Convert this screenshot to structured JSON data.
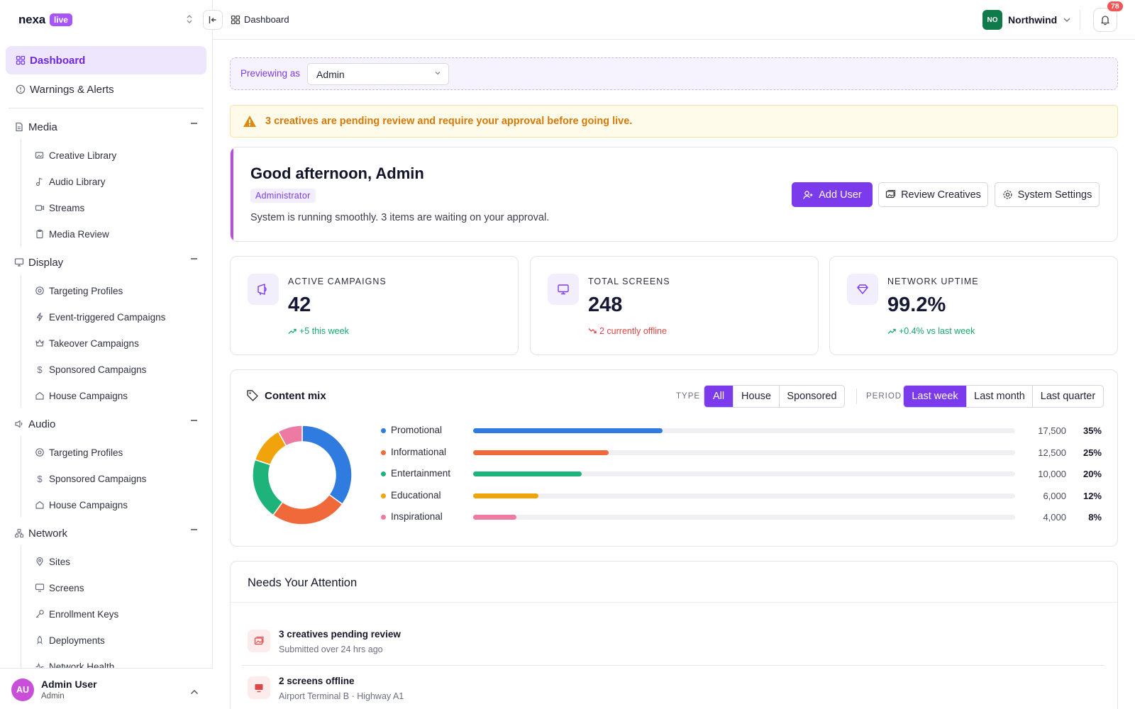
{
  "brand": {
    "name": "nexa",
    "badge": "live"
  },
  "sidebar": {
    "top_items": [
      {
        "label": "Dashboard",
        "icon": "grid-icon",
        "active": true
      },
      {
        "label": "Warnings & Alerts",
        "icon": "alert-circle-icon",
        "active": false
      }
    ],
    "groups": [
      {
        "label": "Media",
        "icon": "document-icon",
        "items": [
          "Creative Library",
          "Audio Library",
          "Streams",
          "Media Review"
        ]
      },
      {
        "label": "Display",
        "icon": "monitor-icon",
        "items": [
          "Targeting Profiles",
          "Event-triggered Campaigns",
          "Takeover Campaigns",
          "Sponsored Campaigns",
          "House Campaigns"
        ]
      },
      {
        "label": "Audio",
        "icon": "speaker-icon",
        "items": [
          "Targeting Profiles",
          "Sponsored Campaigns",
          "House Campaigns"
        ]
      },
      {
        "label": "Network",
        "icon": "network-icon",
        "items": [
          "Sites",
          "Screens",
          "Enrollment Keys",
          "Deployments",
          "Network Health"
        ]
      }
    ],
    "user": {
      "initials": "AU",
      "name": "Admin User",
      "role": "Admin"
    }
  },
  "topbar": {
    "breadcrumb": "Dashboard",
    "org": {
      "initials": "NO",
      "name": "Northwind"
    },
    "notifications": "78"
  },
  "preview": {
    "label": "Previewing as",
    "value": "Admin"
  },
  "alert": {
    "text": "3 creatives are pending review and require your approval before going live."
  },
  "welcome": {
    "title": "Good afternoon, Admin",
    "role": "Administrator",
    "subtitle": "System is running smoothly. 3 items are waiting on your approval.",
    "buttons": {
      "add_user": "Add User",
      "review": "Review Creatives",
      "settings": "System Settings"
    }
  },
  "stats": [
    {
      "label": "ACTIVE CAMPAIGNS",
      "value": "42",
      "delta": "+5 this week",
      "trend": "up"
    },
    {
      "label": "TOTAL SCREENS",
      "value": "248",
      "delta": "2 currently offline",
      "trend": "down"
    },
    {
      "label": "NETWORK UPTIME",
      "value": "99.2%",
      "delta": "+0.4% vs last week",
      "trend": "up"
    }
  ],
  "content_mix": {
    "title": "Content mix",
    "type_label": "TYPE",
    "type_options": [
      "All",
      "House",
      "Sponsored"
    ],
    "type_selected": "All",
    "period_label": "PERIOD",
    "period_options": [
      "Last week",
      "Last month",
      "Last quarter"
    ],
    "period_selected": "Last week",
    "rows": [
      {
        "name": "Promotional",
        "count": "17,500",
        "pct": "35%",
        "share": 35,
        "color": "#2f7be0"
      },
      {
        "name": "Informational",
        "count": "12,500",
        "pct": "25%",
        "share": 25,
        "color": "#f0693a"
      },
      {
        "name": "Entertainment",
        "count": "10,000",
        "pct": "20%",
        "share": 20,
        "color": "#1fb37c"
      },
      {
        "name": "Educational",
        "count": "6,000",
        "pct": "12%",
        "share": 12,
        "color": "#f0a30a"
      },
      {
        "name": "Inspirational",
        "count": "4,000",
        "pct": "8%",
        "share": 8,
        "color": "#ec7aa3"
      }
    ]
  },
  "attention": {
    "title": "Needs Your Attention",
    "items": [
      {
        "title": "3 creatives pending review",
        "subtitle": "Submitted over 24 hrs ago",
        "icon": "image-icon"
      },
      {
        "title": "2 screens offline",
        "subtitle": "Airport Terminal B · Highway A1",
        "icon": "monitor-icon"
      }
    ]
  },
  "colors": {
    "accent": "#7c3aed",
    "alert": "#d57a08",
    "success": "#18a86e",
    "danger": "#e04646"
  }
}
